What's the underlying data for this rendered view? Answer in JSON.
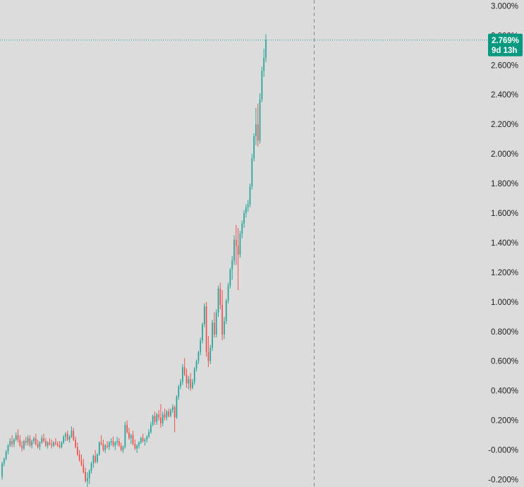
{
  "chart_data": {
    "type": "candlestick",
    "y_unit": "%",
    "ylim": [
      -0.25,
      3.04
    ],
    "y_ticks": [
      "3.000%",
      "2.800%",
      "2.600%",
      "2.400%",
      "2.200%",
      "2.000%",
      "1.800%",
      "1.600%",
      "1.400%",
      "1.200%",
      "1.000%",
      "0.800%",
      "0.600%",
      "0.400%",
      "0.200%",
      "-0.000%",
      "-0.200%"
    ],
    "y_tick_values": [
      3.0,
      2.8,
      2.6,
      2.4,
      2.2,
      2.0,
      1.8,
      1.6,
      1.4,
      1.2,
      1.0,
      0.8,
      0.6,
      0.4,
      0.2,
      0.0,
      -0.2
    ],
    "last_value_label": "2.769%",
    "countdown_label": "9d 13h",
    "last_value": 2.769,
    "grid": false,
    "colors": {
      "background": "#dcdcdc",
      "up": "#26a69a",
      "down": "#ef5350",
      "badge": "#089981",
      "crosshair": "#888888",
      "price_line": "#26a69a",
      "text": "#1e1e1e"
    },
    "candles": [
      [
        -0.18,
        -0.08,
        -0.2,
        -0.09
      ],
      [
        -0.09,
        -0.05,
        -0.11,
        -0.06
      ],
      [
        -0.06,
        0.0,
        -0.07,
        -0.01
      ],
      [
        -0.01,
        0.04,
        -0.03,
        0.03
      ],
      [
        0.03,
        0.08,
        0.02,
        0.06
      ],
      [
        0.06,
        0.1,
        0.02,
        0.04
      ],
      [
        0.04,
        0.08,
        0.02,
        0.07
      ],
      [
        0.07,
        0.12,
        0.06,
        0.1
      ],
      [
        0.1,
        0.14,
        0.05,
        0.07
      ],
      [
        0.07,
        0.1,
        0.02,
        0.03
      ],
      [
        0.03,
        0.06,
        -0.01,
        0.01
      ],
      [
        0.01,
        0.07,
        0.0,
        0.06
      ],
      [
        0.06,
        0.09,
        0.03,
        0.05
      ],
      [
        0.05,
        0.1,
        0.03,
        0.08
      ],
      [
        0.08,
        0.1,
        0.02,
        0.03
      ],
      [
        0.03,
        0.07,
        0.01,
        0.06
      ],
      [
        0.06,
        0.09,
        0.04,
        0.08
      ],
      [
        0.08,
        0.11,
        0.03,
        0.04
      ],
      [
        0.04,
        0.07,
        0.01,
        0.02
      ],
      [
        0.02,
        0.06,
        0.0,
        0.05
      ],
      [
        0.05,
        0.1,
        0.04,
        0.08
      ],
      [
        0.08,
        0.11,
        0.05,
        0.06
      ],
      [
        0.06,
        0.08,
        0.02,
        0.03
      ],
      [
        0.03,
        0.06,
        0.01,
        0.05
      ],
      [
        0.05,
        0.08,
        0.03,
        0.04
      ],
      [
        0.04,
        0.07,
        0.01,
        0.03
      ],
      [
        0.03,
        0.06,
        0.02,
        0.05
      ],
      [
        0.05,
        0.08,
        0.03,
        0.04
      ],
      [
        0.04,
        0.06,
        0.02,
        0.03
      ],
      [
        0.03,
        0.06,
        0.01,
        0.02
      ],
      [
        0.02,
        0.06,
        0.01,
        0.05
      ],
      [
        0.05,
        0.1,
        0.04,
        0.09
      ],
      [
        0.09,
        0.12,
        0.06,
        0.11
      ],
      [
        0.11,
        0.13,
        0.06,
        0.07
      ],
      [
        0.07,
        0.1,
        0.05,
        0.09
      ],
      [
        0.09,
        0.16,
        0.08,
        0.13
      ],
      [
        0.13,
        0.15,
        0.06,
        0.07
      ],
      [
        0.07,
        0.09,
        0.01,
        0.02
      ],
      [
        0.02,
        0.05,
        -0.04,
        -0.03
      ],
      [
        -0.03,
        0.0,
        -0.08,
        -0.07
      ],
      [
        -0.07,
        -0.03,
        -0.11,
        -0.1
      ],
      [
        -0.1,
        -0.06,
        -0.16,
        -0.15
      ],
      [
        -0.15,
        -0.12,
        -0.22,
        -0.21
      ],
      [
        -0.21,
        -0.15,
        -0.27,
        -0.19
      ],
      [
        -0.19,
        -0.13,
        -0.23,
        -0.14
      ],
      [
        -0.14,
        -0.08,
        -0.16,
        -0.09
      ],
      [
        -0.09,
        -0.03,
        -0.12,
        -0.04
      ],
      [
        -0.04,
        0.0,
        -0.09,
        -0.08
      ],
      [
        -0.08,
        -0.02,
        -0.09,
        -0.03
      ],
      [
        -0.03,
        0.06,
        -0.04,
        0.05
      ],
      [
        0.05,
        0.1,
        0.03,
        0.04
      ],
      [
        0.04,
        0.07,
        -0.01,
        0.0
      ],
      [
        0.0,
        0.04,
        -0.02,
        0.03
      ],
      [
        0.03,
        0.06,
        0.01,
        0.02
      ],
      [
        0.02,
        0.06,
        0.0,
        0.05
      ],
      [
        0.05,
        0.08,
        0.03,
        0.06
      ],
      [
        0.06,
        0.09,
        0.02,
        0.03
      ],
      [
        0.03,
        0.06,
        0.0,
        0.05
      ],
      [
        0.05,
        0.09,
        0.03,
        0.06
      ],
      [
        0.06,
        0.08,
        0.02,
        0.03
      ],
      [
        0.03,
        0.05,
        -0.01,
        0.0
      ],
      [
        0.0,
        0.03,
        -0.02,
        0.02
      ],
      [
        0.02,
        0.19,
        0.01,
        0.17
      ],
      [
        0.17,
        0.2,
        0.11,
        0.12
      ],
      [
        0.12,
        0.15,
        0.07,
        0.08
      ],
      [
        0.08,
        0.11,
        0.04,
        0.1
      ],
      [
        0.1,
        0.13,
        0.03,
        0.04
      ],
      [
        0.04,
        0.07,
        0.0,
        0.01
      ],
      [
        0.01,
        0.04,
        -0.02,
        0.03
      ],
      [
        0.03,
        0.06,
        0.01,
        0.05
      ],
      [
        0.05,
        0.09,
        0.04,
        0.08
      ],
      [
        0.08,
        0.11,
        0.05,
        0.06
      ],
      [
        0.06,
        0.08,
        0.03,
        0.07
      ],
      [
        0.07,
        0.1,
        0.05,
        0.09
      ],
      [
        0.09,
        0.14,
        0.08,
        0.12
      ],
      [
        0.12,
        0.19,
        0.11,
        0.17
      ],
      [
        0.17,
        0.24,
        0.16,
        0.23
      ],
      [
        0.23,
        0.26,
        0.17,
        0.19
      ],
      [
        0.19,
        0.25,
        0.17,
        0.24
      ],
      [
        0.24,
        0.27,
        0.2,
        0.22
      ],
      [
        0.22,
        0.31,
        0.15,
        0.18
      ],
      [
        0.18,
        0.26,
        0.16,
        0.24
      ],
      [
        0.24,
        0.28,
        0.2,
        0.22
      ],
      [
        0.22,
        0.27,
        0.2,
        0.26
      ],
      [
        0.26,
        0.28,
        0.22,
        0.23
      ],
      [
        0.23,
        0.28,
        0.22,
        0.27
      ],
      [
        0.27,
        0.31,
        0.25,
        0.29
      ],
      [
        0.29,
        0.3,
        0.12,
        0.22
      ],
      [
        0.22,
        0.37,
        0.21,
        0.36
      ],
      [
        0.36,
        0.44,
        0.34,
        0.43
      ],
      [
        0.43,
        0.48,
        0.41,
        0.46
      ],
      [
        0.46,
        0.58,
        0.44,
        0.56
      ],
      [
        0.56,
        0.62,
        0.5,
        0.51
      ],
      [
        0.51,
        0.55,
        0.42,
        0.45
      ],
      [
        0.45,
        0.5,
        0.41,
        0.48
      ],
      [
        0.48,
        0.52,
        0.4,
        0.42
      ],
      [
        0.42,
        0.48,
        0.41,
        0.46
      ],
      [
        0.46,
        0.56,
        0.44,
        0.55
      ],
      [
        0.55,
        0.61,
        0.53,
        0.6
      ],
      [
        0.6,
        0.67,
        0.58,
        0.66
      ],
      [
        0.66,
        0.76,
        0.64,
        0.74
      ],
      [
        0.74,
        0.86,
        0.72,
        0.85
      ],
      [
        0.85,
        0.99,
        0.83,
        0.97
      ],
      [
        0.97,
        1.0,
        0.63,
        0.66
      ],
      [
        0.66,
        0.77,
        0.56,
        0.6
      ],
      [
        0.6,
        0.71,
        0.58,
        0.69
      ],
      [
        0.69,
        0.88,
        0.67,
        0.86
      ],
      [
        0.86,
        0.93,
        0.76,
        0.78
      ],
      [
        0.78,
        0.95,
        0.76,
        0.93
      ],
      [
        0.93,
        1.11,
        0.9,
        1.09
      ],
      [
        1.09,
        1.13,
        0.95,
        0.98
      ],
      [
        0.98,
        1.08,
        0.74,
        0.78
      ],
      [
        0.78,
        0.9,
        0.75,
        0.87
      ],
      [
        0.87,
        1.02,
        0.85,
        1.01
      ],
      [
        1.01,
        1.13,
        0.99,
        1.11
      ],
      [
        1.11,
        1.23,
        1.09,
        1.22
      ],
      [
        1.22,
        1.31,
        1.15,
        1.28
      ],
      [
        1.28,
        1.45,
        1.25,
        1.42
      ],
      [
        1.42,
        1.52,
        1.25,
        1.38
      ],
      [
        1.38,
        1.5,
        1.08,
        1.32
      ],
      [
        1.32,
        1.48,
        1.3,
        1.46
      ],
      [
        1.46,
        1.55,
        1.43,
        1.53
      ],
      [
        1.53,
        1.62,
        1.5,
        1.6
      ],
      [
        1.6,
        1.66,
        1.57,
        1.64
      ],
      [
        1.64,
        1.69,
        1.61,
        1.66
      ],
      [
        1.66,
        1.8,
        1.64,
        1.78
      ],
      [
        1.78,
        2.0,
        1.76,
        1.97
      ],
      [
        1.97,
        2.14,
        1.95,
        2.12
      ],
      [
        2.12,
        2.31,
        2.06,
        2.2
      ],
      [
        2.2,
        2.34,
        2.05,
        2.09
      ],
      [
        2.09,
        2.41,
        2.07,
        2.37
      ],
      [
        2.37,
        2.59,
        2.35,
        2.56
      ],
      [
        2.56,
        2.71,
        2.52,
        2.65
      ],
      [
        2.65,
        2.81,
        2.62,
        2.769
      ]
    ]
  }
}
